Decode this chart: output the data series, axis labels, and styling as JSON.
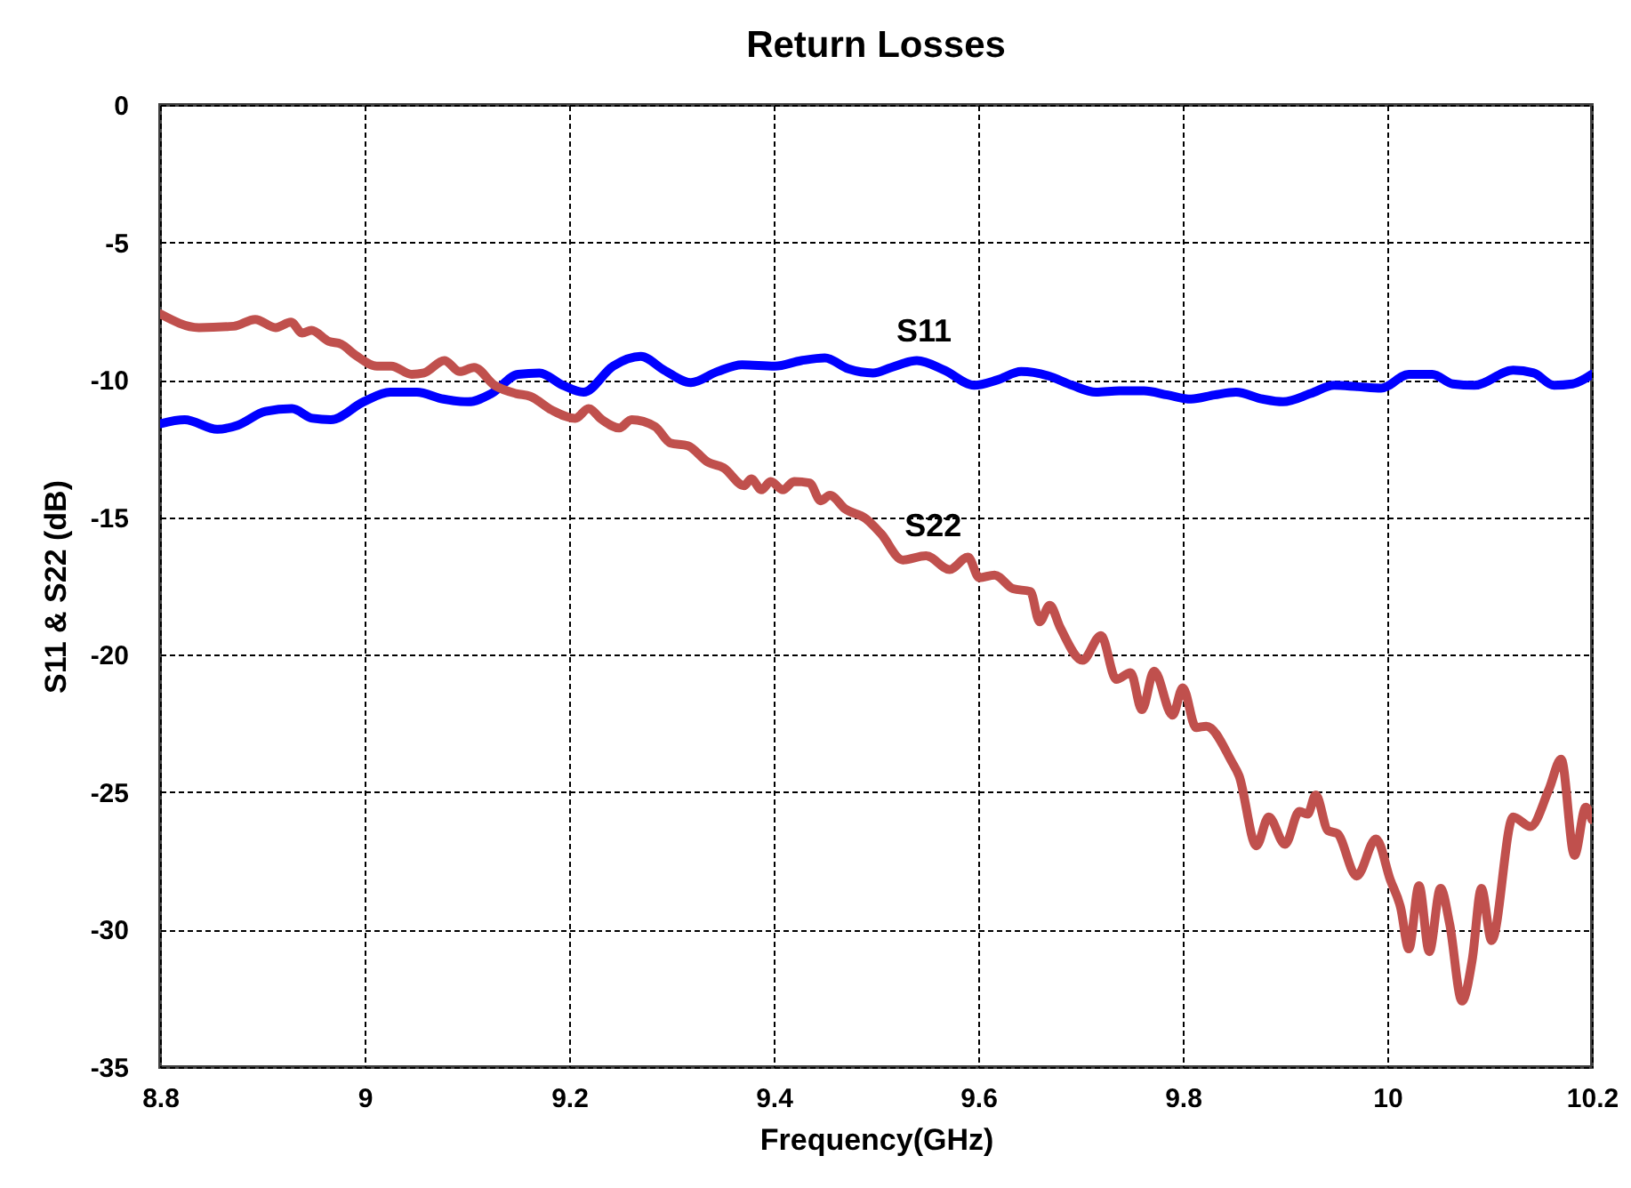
{
  "chart_data": {
    "type": "line",
    "title": "Return Losses",
    "xlabel": "Frequency(GHz)",
    "ylabel": "S11 & S22 (dB)",
    "xlim": [
      8.8,
      10.2
    ],
    "xticks": [
      8.8,
      9,
      9.2,
      9.4,
      9.6,
      9.8,
      10,
      10.2
    ],
    "ylim": [
      -35,
      0
    ],
    "yticks": [
      0,
      -5,
      -10,
      -15,
      -20,
      -25,
      -30,
      -35
    ],
    "grid": true,
    "series": [
      {
        "name": "S11",
        "color": "#0000ff",
        "x": [
          8.8,
          8.824,
          8.856,
          8.876,
          8.903,
          8.929,
          8.949,
          8.967,
          8.999,
          9.025,
          9.051,
          9.077,
          9.101,
          9.124,
          9.15,
          9.171,
          9.194,
          9.214,
          9.243,
          9.27,
          9.293,
          9.319,
          9.345,
          9.369,
          9.401,
          9.427,
          9.45,
          9.473,
          9.497,
          9.515,
          9.54,
          9.567,
          9.596,
          9.619,
          9.642,
          9.668,
          9.692,
          9.715,
          9.738,
          9.762,
          9.785,
          9.808,
          9.831,
          9.852,
          9.878,
          9.898,
          9.925,
          9.948,
          9.971,
          9.994,
          10.021,
          10.044,
          10.064,
          10.085,
          10.123,
          10.143,
          10.163,
          10.181,
          10.2
        ],
        "values": [
          -11.6,
          -11.45,
          -11.8,
          -11.65,
          -11.15,
          -11.05,
          -11.4,
          -11.45,
          -10.8,
          -10.45,
          -10.45,
          -10.7,
          -10.8,
          -10.5,
          -9.8,
          -9.75,
          -10.2,
          -10.45,
          -9.5,
          -9.15,
          -9.65,
          -10.1,
          -9.7,
          -9.45,
          -9.5,
          -9.3,
          -9.2,
          -9.6,
          -9.75,
          -9.55,
          -9.3,
          -9.65,
          -10.2,
          -10.0,
          -9.7,
          -9.85,
          -10.2,
          -10.45,
          -10.4,
          -10.4,
          -10.55,
          -10.7,
          -10.55,
          -10.45,
          -10.7,
          -10.8,
          -10.5,
          -10.2,
          -10.25,
          -10.3,
          -9.8,
          -9.8,
          -10.15,
          -10.2,
          -9.65,
          -9.75,
          -10.2,
          -10.15,
          -9.8
        ]
      },
      {
        "name": "S22",
        "color": "#c0504d",
        "x": [
          8.8,
          8.838,
          8.872,
          8.893,
          8.913,
          8.928,
          8.939,
          8.948,
          8.965,
          8.977,
          8.991,
          9.012,
          9.026,
          9.046,
          9.058,
          9.078,
          9.093,
          9.107,
          9.127,
          9.148,
          9.162,
          9.183,
          9.206,
          9.219,
          9.232,
          9.249,
          9.261,
          9.284,
          9.299,
          9.316,
          9.336,
          9.351,
          9.371,
          9.378,
          9.388,
          9.397,
          9.409,
          9.42,
          9.435,
          9.446,
          9.455,
          9.47,
          9.49,
          9.505,
          9.526,
          9.549,
          9.572,
          9.59,
          9.601,
          9.616,
          9.634,
          9.651,
          9.66,
          9.67,
          9.68,
          9.702,
          9.72,
          9.735,
          9.749,
          9.76,
          9.772,
          9.79,
          9.8,
          9.813,
          9.823,
          9.848,
          9.855,
          9.872,
          9.884,
          9.9,
          9.914,
          9.922,
          9.93,
          9.942,
          9.951,
          9.97,
          9.989,
          10.003,
          10.013,
          10.021,
          10.031,
          10.041,
          10.052,
          10.061,
          10.073,
          10.083,
          10.092,
          10.102,
          10.123,
          10.14,
          10.158,
          10.17,
          10.183,
          10.194,
          10.2
        ],
        "values": [
          -7.6,
          -8.1,
          -8.05,
          -7.8,
          -8.1,
          -7.9,
          -8.3,
          -8.2,
          -8.6,
          -8.7,
          -9.1,
          -9.5,
          -9.5,
          -9.8,
          -9.75,
          -9.3,
          -9.7,
          -9.55,
          -10.2,
          -10.5,
          -10.6,
          -11.1,
          -11.4,
          -11.05,
          -11.45,
          -11.75,
          -11.45,
          -11.7,
          -12.3,
          -12.4,
          -13.0,
          -13.2,
          -13.85,
          -13.6,
          -14.0,
          -13.7,
          -14.0,
          -13.7,
          -13.75,
          -14.4,
          -14.2,
          -14.7,
          -15.05,
          -15.6,
          -16.55,
          -16.4,
          -16.9,
          -16.45,
          -17.2,
          -17.1,
          -17.6,
          -17.7,
          -18.8,
          -18.2,
          -19.0,
          -20.2,
          -19.3,
          -20.9,
          -20.65,
          -22.0,
          -20.6,
          -22.2,
          -21.2,
          -22.65,
          -22.6,
          -23.9,
          -24.4,
          -26.95,
          -25.9,
          -26.9,
          -25.7,
          -25.8,
          -25.1,
          -26.4,
          -26.5,
          -28.05,
          -26.7,
          -28.2,
          -29.2,
          -30.7,
          -28.4,
          -30.8,
          -28.5,
          -29.8,
          -32.6,
          -31.1,
          -28.5,
          -30.4,
          -25.9,
          -26.25,
          -24.9,
          -23.8,
          -27.3,
          -25.55,
          -26.0
        ]
      }
    ]
  }
}
